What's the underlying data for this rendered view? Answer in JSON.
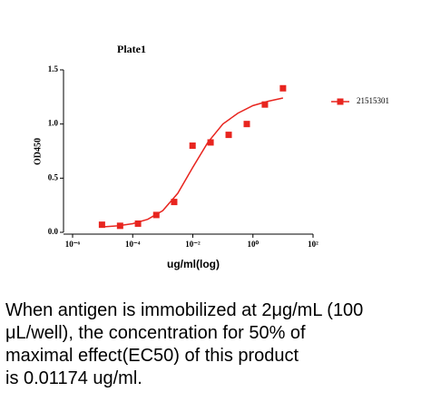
{
  "chart_data": {
    "type": "scatter",
    "title": "Plate1",
    "y_label": "OD450",
    "x_label": "ug/ml(log)",
    "x_log": true,
    "xlim": [
      1e-06,
      100
    ],
    "xticks": [
      {
        "value": 1e-06,
        "label": "10⁻⁶"
      },
      {
        "value": 0.0001,
        "label": "10⁻⁴"
      },
      {
        "value": 0.01,
        "label": "10⁻²"
      },
      {
        "value": 1,
        "label": "10⁰"
      },
      {
        "value": 100,
        "label": "10²"
      }
    ],
    "ylim": [
      0,
      1.5
    ],
    "yticks": [
      {
        "value": 0,
        "label": "0.0"
      },
      {
        "value": 0.5,
        "label": "0.5"
      },
      {
        "value": 1,
        "label": "1.0"
      },
      {
        "value": 1.5,
        "label": "1.5"
      }
    ],
    "x": [
      9.5e-06,
      3.8e-05,
      0.00015,
      0.00061,
      0.0024,
      0.0098,
      0.039,
      0.156,
      0.625,
      2.5,
      10
    ],
    "series": [
      {
        "name": "21515301",
        "color": "#e8251f",
        "values": [
          0.07,
          0.06,
          0.08,
          0.16,
          0.28,
          0.8,
          0.83,
          0.9,
          1.0,
          1.18,
          1.33
        ]
      }
    ],
    "curve": {
      "color": "#e8251f",
      "x": [
        1e-05,
        3.16e-05,
        0.0001,
        0.000316,
        0.001,
        0.00316,
        0.01,
        0.0316,
        0.1,
        0.316,
        1,
        3.16,
        10
      ],
      "values": [
        0.05,
        0.06,
        0.08,
        0.12,
        0.2,
        0.36,
        0.6,
        0.83,
        1.0,
        1.1,
        1.17,
        1.21,
        1.24
      ]
    },
    "legend": "right"
  },
  "caption": {
    "lines": [
      "When antigen is immobilized at 2μg/mL (100",
      "μL/well), the concentration for 50% of",
      "maximal effect(EC50) of this product",
      "is 0.01174 ug/ml."
    ]
  }
}
